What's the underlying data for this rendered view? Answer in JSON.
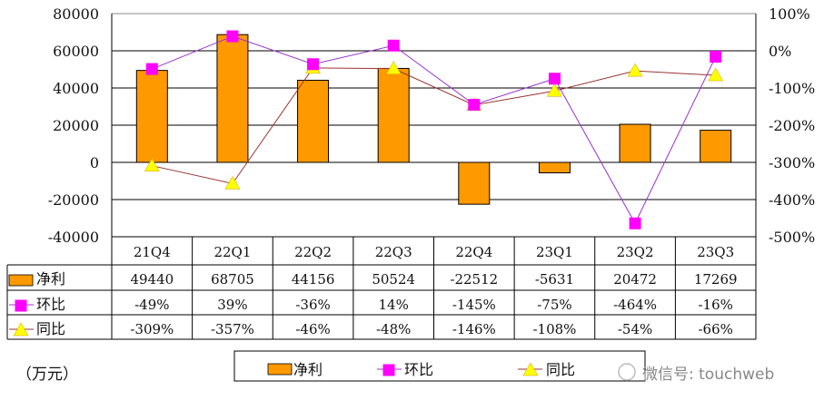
{
  "chart_data": {
    "type": "bar",
    "categories": [
      "21Q4",
      "22Q1",
      "22Q2",
      "22Q3",
      "22Q4",
      "23Q1",
      "23Q2",
      "23Q3"
    ],
    "series": [
      {
        "name": "净利",
        "type": "bar",
        "axis": "left",
        "color": "#FF9900",
        "values": [
          49440,
          68705,
          44156,
          50524,
          -22512,
          -5631,
          20472,
          17269
        ],
        "labels": [
          "49440",
          "68705",
          "44156",
          "50524",
          "-22512",
          "-5631",
          "20472",
          "17269"
        ]
      },
      {
        "name": "环比",
        "type": "line",
        "axis": "right",
        "color": "#FF00FF",
        "line_color": "#9933CC",
        "marker": "square",
        "values": [
          -49,
          39,
          -36,
          14,
          -145,
          -75,
          -464,
          -16
        ],
        "labels": [
          "-49%",
          "39%",
          "-36%",
          "14%",
          "-145%",
          "-75%",
          "-464%",
          "-16%"
        ]
      },
      {
        "name": "同比",
        "type": "line",
        "axis": "right",
        "color": "#FFFF00",
        "line_color": "#993333",
        "marker": "triangle",
        "values": [
          -309,
          -357,
          -46,
          -48,
          -146,
          -108,
          -54,
          -66
        ],
        "labels": [
          "-309%",
          "-357%",
          "-46%",
          "-48%",
          "-146%",
          "-108%",
          "-54%",
          "-66%"
        ]
      }
    ],
    "ylim": [
      -40000,
      80000
    ],
    "y_ticks": [
      "80000",
      "60000",
      "40000",
      "20000",
      "0",
      "-20000",
      "-40000"
    ],
    "y2lim": [
      -500,
      100
    ],
    "y2_ticks": [
      "100%",
      "0%",
      "-100%",
      "-200%",
      "-300%",
      "-400%",
      "-500%"
    ],
    "grid": true,
    "data_table": true,
    "legend_position": "bottom",
    "unit_label": "（万元）"
  },
  "watermark": "微信号: touchweb"
}
